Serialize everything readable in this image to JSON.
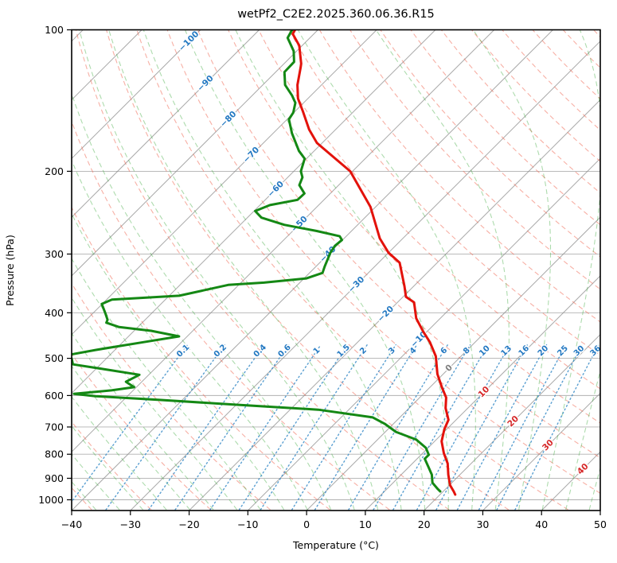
{
  "title": "wetPf2_C2E2.2025.360.06.36.R15",
  "chart_data": {
    "type": "skewt_log_p",
    "title": "wetPf2_C2E2.2025.360.06.36.R15",
    "xlabel": "Temperature (°C)",
    "ylabel": "Pressure (hPa)",
    "xlim": [
      -40,
      50
    ],
    "ylim": [
      1050,
      100
    ],
    "skew_degrees": 45,
    "x_ticks": [
      -40,
      -30,
      -20,
      -10,
      0,
      10,
      20,
      30,
      40,
      50
    ],
    "y_ticks": [
      100,
      200,
      300,
      400,
      500,
      600,
      700,
      800,
      900,
      1000
    ],
    "grid_color": "#b0b0b0",
    "isotherms": {
      "start_c": -120,
      "end_c": 40,
      "step_c": 10,
      "line_color": "#8c8c8c",
      "labels": [
        {
          "value": -100,
          "color": "#2479c2"
        },
        {
          "value": -90,
          "color": "#2479c2"
        },
        {
          "value": -80,
          "color": "#2479c2"
        },
        {
          "value": -70,
          "color": "#2479c2"
        },
        {
          "value": -60,
          "color": "#2479c2"
        },
        {
          "value": -50,
          "color": "#2479c2"
        },
        {
          "value": -40,
          "color": "#2479c2"
        },
        {
          "value": -30,
          "color": "#2479c2"
        },
        {
          "value": -20,
          "color": "#2479c2"
        },
        {
          "value": -10,
          "color": "#2479c2"
        },
        {
          "value": 0,
          "color": "#7f7f7f"
        },
        {
          "value": 10,
          "color": "#d62728"
        },
        {
          "value": 20,
          "color": "#d62728"
        },
        {
          "value": 30,
          "color": "#d62728"
        },
        {
          "value": 40,
          "color": "#d62728"
        }
      ]
    },
    "dry_adiabats": {
      "theta_c_start": -40,
      "theta_c_end": 190,
      "step_c": 10,
      "color": "rgba(240,110,90,0.55)"
    },
    "moist_adiabats": {
      "t0_c_start": -40,
      "t0_c_end": 48,
      "step_c": 4,
      "color": "rgba(60,170,60,0.42)"
    },
    "mixing_ratio_lines": {
      "values_g_kg": [
        0.1,
        0.2,
        0.4,
        0.6,
        1,
        1.5,
        2,
        3,
        4,
        6,
        8,
        10,
        13,
        16,
        20,
        25,
        30,
        36
      ],
      "color": "#3d8ec9",
      "label_color": "#2479c2",
      "top_pressure_hpa": 468,
      "label_pressure_hpa": 482
    },
    "series": [
      {
        "name": "temperature",
        "color": "#e3120b",
        "points_p_t": [
          [
            100,
            -83.9
          ],
          [
            102,
            -83.6
          ],
          [
            108,
            -80.5
          ],
          [
            118,
            -77.1
          ],
          [
            120,
            -76.6
          ],
          [
            131,
            -74.1
          ],
          [
            140,
            -71.7
          ],
          [
            149,
            -68.7
          ],
          [
            163,
            -64.5
          ],
          [
            174,
            -60.9
          ],
          [
            178,
            -59.2
          ],
          [
            200,
            -50.4
          ],
          [
            238,
            -40.9
          ],
          [
            278,
            -33.9
          ],
          [
            298,
            -30.0
          ],
          [
            313,
            -26.4
          ],
          [
            351,
            -21.6
          ],
          [
            370,
            -19.5
          ],
          [
            380,
            -17.2
          ],
          [
            411,
            -14.1
          ],
          [
            439,
            -10.6
          ],
          [
            462,
            -7.7
          ],
          [
            495,
            -4.3
          ],
          [
            540,
            -1.0
          ],
          [
            576,
            2.0
          ],
          [
            606,
            4.5
          ],
          [
            638,
            6.2
          ],
          [
            676,
            8.7
          ],
          [
            708,
            9.6
          ],
          [
            751,
            11.2
          ],
          [
            796,
            13.6
          ],
          [
            837,
            16.0
          ],
          [
            884,
            18.0
          ],
          [
            931,
            20.1
          ],
          [
            960,
            21.8
          ],
          [
            975,
            22.6
          ]
        ]
      },
      {
        "name": "dewpoint",
        "color": "#148814",
        "points_p_t": [
          [
            100,
            -84.4
          ],
          [
            104,
            -83.8
          ],
          [
            111,
            -80.5
          ],
          [
            117,
            -78.6
          ],
          [
            123,
            -78.5
          ],
          [
            131,
            -76.2
          ],
          [
            138,
            -73.2
          ],
          [
            143,
            -71.4
          ],
          [
            150,
            -70.1
          ],
          [
            155,
            -69.7
          ],
          [
            166,
            -66.8
          ],
          [
            181,
            -62.6
          ],
          [
            188,
            -60.3
          ],
          [
            200,
            -58.8
          ],
          [
            206,
            -57.5
          ],
          [
            214,
            -56.7
          ],
          [
            223,
            -54.4
          ],
          [
            230,
            -54.5
          ],
          [
            236,
            -58.3
          ],
          [
            243,
            -59.8
          ],
          [
            251,
            -57.6
          ],
          [
            260,
            -52.5
          ],
          [
            268,
            -45.9
          ],
          [
            275,
            -41.1
          ],
          [
            280,
            -40.1
          ],
          [
            288,
            -40.3
          ],
          [
            298,
            -39.9
          ],
          [
            319,
            -38.5
          ],
          [
            329,
            -37.8
          ],
          [
            338,
            -39.6
          ],
          [
            345,
            -46.1
          ],
          [
            349,
            -51.8
          ],
          [
            368,
            -58.3
          ],
          [
            375,
            -69.1
          ],
          [
            383,
            -70.1
          ],
          [
            400,
            -68.0
          ],
          [
            414,
            -66.4
          ],
          [
            420,
            -66.1
          ],
          [
            429,
            -63.2
          ],
          [
            437,
            -57.1
          ],
          [
            449,
            -51.4
          ],
          [
            462,
            -56.5
          ],
          [
            480,
            -63.3
          ],
          [
            491,
            -66.8
          ],
          [
            503,
            -65.7
          ],
          [
            515,
            -64.7
          ],
          [
            527,
            -58.7
          ],
          [
            542,
            -51.6
          ],
          [
            561,
            -52.7
          ],
          [
            576,
            -50.4
          ],
          [
            585,
            -53.7
          ],
          [
            595,
            -59.5
          ],
          [
            602,
            -55.4
          ],
          [
            613,
            -43.9
          ],
          [
            628,
            -29.6
          ],
          [
            643,
            -15.2
          ],
          [
            668,
            -4.6
          ],
          [
            689,
            -1.5
          ],
          [
            717,
            1.8
          ],
          [
            745,
            6.6
          ],
          [
            775,
            9.6
          ],
          [
            802,
            11.3
          ],
          [
            818,
            11.3
          ],
          [
            851,
            13.3
          ],
          [
            884,
            15.2
          ],
          [
            920,
            16.7
          ],
          [
            949,
            18.7
          ],
          [
            960,
            19.5
          ]
        ]
      }
    ]
  }
}
